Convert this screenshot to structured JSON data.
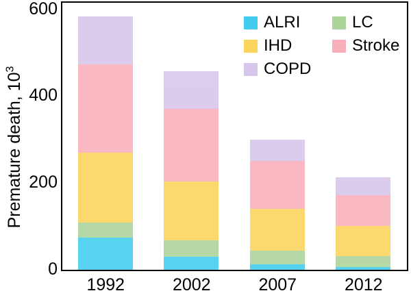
{
  "chart_data": {
    "type": "bar",
    "stacked": true,
    "title": "",
    "ylabel_text": "Premature death, 10",
    "ylabel_sup": "3",
    "xlabel": "",
    "categories": [
      "1992",
      "2002",
      "2007",
      "2012"
    ],
    "series": [
      {
        "name": "ALRI",
        "color": "#42CCF0",
        "values": [
          75,
          30,
          12,
          6
        ]
      },
      {
        "name": "LC",
        "color": "#ACD398",
        "values": [
          34,
          38,
          33,
          26
        ]
      },
      {
        "name": "IHD",
        "color": "#FBD45C",
        "values": [
          162,
          136,
          95,
          69
        ]
      },
      {
        "name": "Stroke",
        "color": "#F9AFBA",
        "values": [
          203,
          168,
          112,
          72
        ]
      },
      {
        "name": "COPD",
        "color": "#D7C6EC",
        "values": [
          111,
          86,
          49,
          40
        ]
      }
    ],
    "stack_order_bottom_to_top": [
      "ALRI",
      "LC",
      "IHD",
      "Stroke",
      "COPD"
    ],
    "totals": [
      585,
      458,
      301,
      213
    ],
    "ylim": [
      0,
      615
    ],
    "yticks": [
      0,
      200,
      400,
      600
    ],
    "grid": false,
    "legend": {
      "position": "top-right-inside",
      "columns": [
        [
          "ALRI",
          "IHD",
          "COPD"
        ],
        [
          "LC",
          "Stroke"
        ]
      ]
    }
  }
}
